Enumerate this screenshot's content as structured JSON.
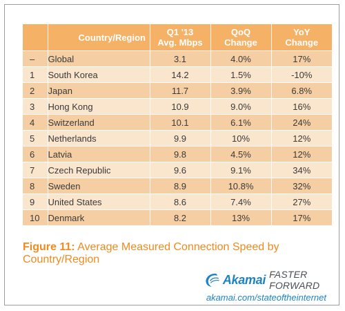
{
  "chart_data": {
    "type": "table",
    "columns": [
      {
        "key": "rank",
        "label": ""
      },
      {
        "key": "country",
        "label": "Country/Region"
      },
      {
        "key": "avg",
        "label_line1": "Q1 '13",
        "label_line2": "Avg. Mbps"
      },
      {
        "key": "qoq",
        "label_line1": "QoQ",
        "label_line2": "Change"
      },
      {
        "key": "yoy",
        "label_line1": "YoY",
        "label_line2": "Change"
      }
    ],
    "rows": [
      {
        "rank": "–",
        "country": "Global",
        "avg": "3.1",
        "qoq": "4.0%",
        "yoy": "17%"
      },
      {
        "rank": "1",
        "country": "South Korea",
        "avg": "14.2",
        "qoq": "1.5%",
        "yoy": "-10%"
      },
      {
        "rank": "2",
        "country": "Japan",
        "avg": "11.7",
        "qoq": "3.9%",
        "yoy": "6.8%"
      },
      {
        "rank": "3",
        "country": "Hong Kong",
        "avg": "10.9",
        "qoq": "9.0%",
        "yoy": "16%"
      },
      {
        "rank": "4",
        "country": "Switzerland",
        "avg": "10.1",
        "qoq": "6.1%",
        "yoy": "24%"
      },
      {
        "rank": "5",
        "country": "Netherlands",
        "avg": "9.9",
        "qoq": "10%",
        "yoy": "12%"
      },
      {
        "rank": "6",
        "country": "Latvia",
        "avg": "9.8",
        "qoq": "4.5%",
        "yoy": "12%"
      },
      {
        "rank": "7",
        "country": "Czech Republic",
        "avg": "9.6",
        "qoq": "9.1%",
        "yoy": "34%"
      },
      {
        "rank": "8",
        "country": "Sweden",
        "avg": "8.9",
        "qoq": "10.8%",
        "yoy": "32%"
      },
      {
        "rank": "9",
        "country": "United States",
        "avg": "8.6",
        "qoq": "7.4%",
        "yoy": "27%"
      },
      {
        "rank": "10",
        "country": "Denmark",
        "avg": "8.2",
        "qoq": "13%",
        "yoy": "17%"
      }
    ]
  },
  "caption": {
    "figure_label": "Figure 11:",
    "text": "Average Measured Connection Speed by Country/Region"
  },
  "branding": {
    "brand": "Akamai",
    "tagline": "FASTER FORWARD",
    "url": "akamai.com/stateoftheinternet"
  },
  "colors": {
    "header": "#f5b166",
    "row_odd": "#f5cfa3",
    "row_even": "#fae5cd",
    "caption": "#f08a1e",
    "brand_blue": "#1c84c6"
  }
}
